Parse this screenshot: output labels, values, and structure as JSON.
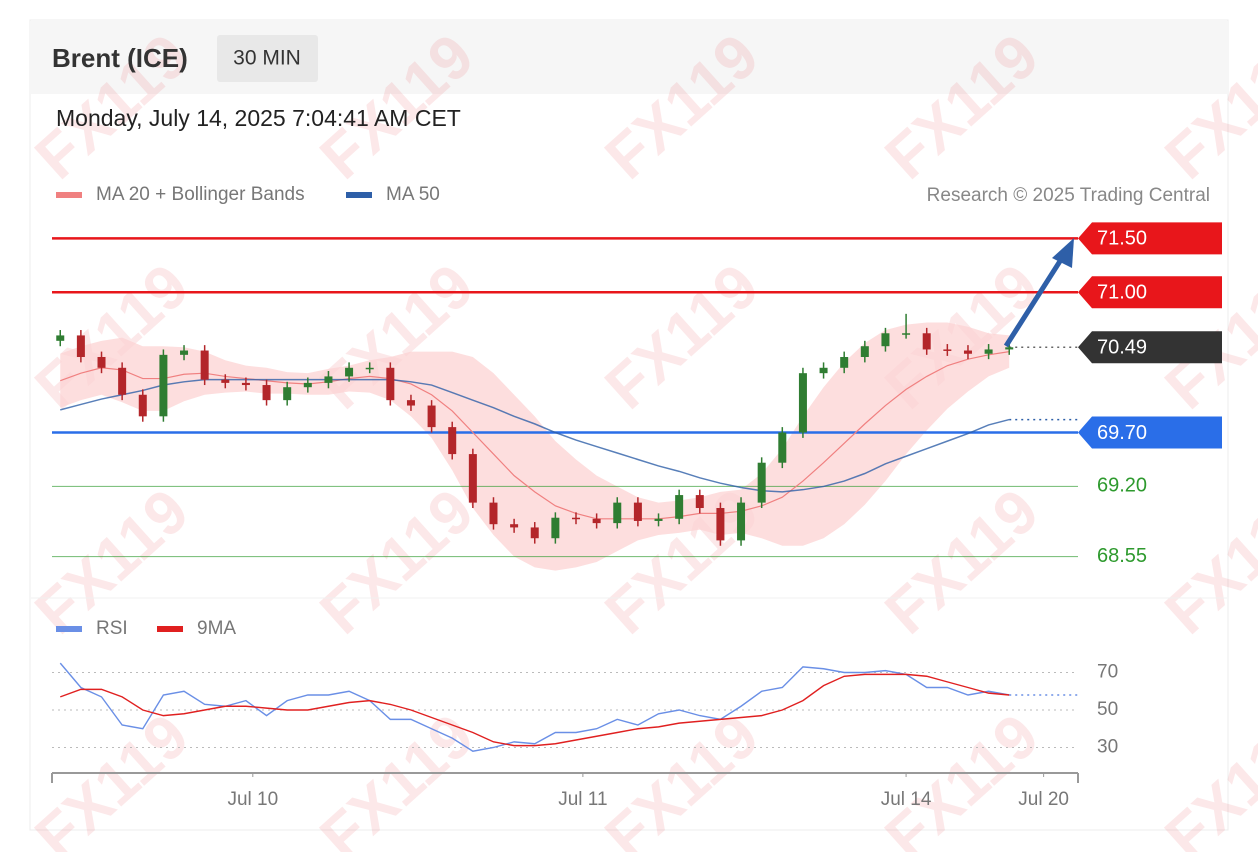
{
  "header": {
    "title": "Brent (ICE)",
    "interval": "30 MIN",
    "timestamp": "Monday, July 14, 2025 7:04:41 AM CET",
    "credit": "Research © 2025 Trading Central"
  },
  "watermark": "FX119",
  "chart_data": [
    {
      "type": "candlestick",
      "x": [
        -28,
        -25,
        -22,
        -19,
        -16,
        -13,
        -10,
        -7,
        -4,
        -1,
        2,
        5,
        8,
        11,
        14,
        17,
        20,
        23,
        26,
        29,
        32,
        35,
        38,
        41,
        44,
        47,
        50,
        53,
        56,
        59,
        62,
        65,
        68,
        71,
        74,
        77,
        80,
        83,
        86,
        89,
        92,
        95,
        98,
        101,
        104,
        107,
        110
      ],
      "open": [
        70.55,
        70.6,
        70.4,
        70.3,
        70.05,
        69.85,
        70.42,
        70.46,
        70.19,
        70.16,
        70.14,
        70.0,
        70.12,
        70.16,
        70.22,
        70.3,
        70.3,
        70.0,
        69.95,
        69.75,
        69.5,
        69.05,
        68.85,
        68.82,
        68.72,
        68.91,
        68.9,
        68.86,
        69.05,
        68.88,
        68.9,
        69.12,
        69.0,
        68.7,
        69.05,
        69.42,
        69.7,
        70.25,
        70.3,
        70.4,
        70.5,
        70.62,
        70.62,
        70.47,
        70.46,
        70.43,
        70.47
      ],
      "high": [
        70.65,
        70.65,
        70.45,
        70.35,
        70.1,
        70.47,
        70.51,
        70.51,
        70.24,
        70.21,
        70.19,
        70.17,
        70.21,
        70.27,
        70.35,
        70.35,
        70.35,
        70.05,
        70.0,
        69.8,
        69.55,
        69.1,
        68.9,
        68.87,
        68.96,
        68.96,
        68.95,
        69.1,
        69.1,
        68.95,
        69.17,
        69.17,
        69.05,
        69.1,
        69.47,
        69.75,
        70.3,
        70.35,
        70.45,
        70.55,
        70.67,
        70.8,
        70.67,
        70.52,
        70.51,
        70.52,
        70.54
      ],
      "low": [
        70.5,
        70.35,
        70.25,
        70.0,
        69.8,
        69.8,
        70.37,
        70.14,
        70.11,
        70.09,
        69.95,
        69.95,
        70.07,
        70.11,
        70.17,
        70.25,
        69.95,
        69.9,
        69.7,
        69.45,
        69.0,
        68.8,
        68.77,
        68.67,
        68.67,
        68.85,
        68.81,
        68.81,
        68.83,
        68.83,
        68.85,
        68.95,
        68.65,
        68.65,
        69.0,
        69.37,
        69.65,
        70.2,
        70.25,
        70.35,
        70.45,
        70.57,
        70.42,
        70.41,
        70.38,
        70.38,
        70.42
      ],
      "close": [
        70.6,
        70.4,
        70.3,
        70.05,
        69.85,
        70.42,
        70.46,
        70.19,
        70.16,
        70.14,
        70.0,
        70.12,
        70.16,
        70.22,
        70.3,
        70.3,
        70.0,
        69.95,
        69.75,
        69.5,
        69.05,
        68.85,
        68.82,
        68.72,
        68.91,
        68.9,
        68.86,
        69.05,
        68.88,
        68.9,
        69.12,
        69.0,
        68.7,
        69.05,
        69.42,
        69.7,
        70.25,
        70.3,
        70.4,
        70.5,
        70.62,
        70.62,
        70.47,
        70.46,
        70.43,
        70.47,
        70.49
      ],
      "up_color": "#2f7d32",
      "down_color": "#b3262a",
      "series": [
        {
          "name": "MA 20 + Bollinger Bands",
          "color": "#f08080",
          "values": [
            70.18,
            70.25,
            70.3,
            70.28,
            70.2,
            70.2,
            70.24,
            70.25,
            70.22,
            70.2,
            70.18,
            70.16,
            70.15,
            70.17,
            70.2,
            70.22,
            70.2,
            70.15,
            70.05,
            69.9,
            69.7,
            69.5,
            69.3,
            69.15,
            69.02,
            68.95,
            68.9,
            68.9,
            68.9,
            68.9,
            68.92,
            68.95,
            68.95,
            68.97,
            69.02,
            69.1,
            69.25,
            69.42,
            69.6,
            69.78,
            69.95,
            70.1,
            70.22,
            70.32,
            70.38,
            70.42,
            70.45
          ]
        },
        {
          "name": "MA 50",
          "color": "#2e5fa8",
          "values": [
            69.91,
            69.96,
            70.01,
            70.05,
            70.09,
            70.14,
            70.17,
            70.19,
            70.19,
            70.19,
            70.19,
            70.19,
            70.19,
            70.19,
            70.19,
            70.19,
            70.19,
            70.17,
            70.14,
            70.07,
            70.0,
            69.93,
            69.85,
            69.78,
            69.7,
            69.63,
            69.57,
            69.51,
            69.45,
            69.39,
            69.34,
            69.28,
            69.23,
            69.19,
            69.16,
            69.15,
            69.17,
            69.2,
            69.25,
            69.32,
            69.41,
            69.48,
            69.55,
            69.62,
            69.69,
            69.77,
            69.82
          ]
        }
      ],
      "bands": {
        "color": "#fcd3d3",
        "upper": [
          70.43,
          70.5,
          70.55,
          70.58,
          70.5,
          70.5,
          70.49,
          70.45,
          70.37,
          70.32,
          70.3,
          70.26,
          70.25,
          70.29,
          70.32,
          70.37,
          70.4,
          70.45,
          70.45,
          70.45,
          70.4,
          70.25,
          70.05,
          69.85,
          69.62,
          69.45,
          69.3,
          69.2,
          69.1,
          69.05,
          69.07,
          69.1,
          69.15,
          69.17,
          69.32,
          69.55,
          69.85,
          70.12,
          70.35,
          70.53,
          70.65,
          70.7,
          70.72,
          70.72,
          70.68,
          70.62,
          70.6
        ],
        "lower": [
          69.93,
          70.0,
          70.05,
          69.98,
          69.9,
          69.9,
          69.99,
          70.05,
          70.07,
          70.08,
          70.06,
          70.06,
          70.05,
          70.05,
          70.08,
          70.07,
          70.0,
          69.85,
          69.65,
          69.35,
          69.0,
          68.75,
          68.55,
          68.45,
          68.42,
          68.45,
          68.5,
          68.6,
          68.7,
          68.75,
          68.77,
          68.8,
          68.75,
          68.77,
          68.72,
          68.65,
          68.65,
          68.72,
          68.85,
          69.03,
          69.25,
          69.5,
          69.72,
          69.92,
          70.08,
          70.22,
          70.3
        ]
      },
      "levels": [
        {
          "value": 71.5,
          "label": "71.50",
          "color": "#e8161b",
          "flag": true
        },
        {
          "value": 71.0,
          "label": "71.00",
          "color": "#e8161b",
          "flag": true
        },
        {
          "value": 70.49,
          "color": "#333333",
          "flag": true,
          "linestyle": "dotted"
        },
        {
          "value": 69.7,
          "label": "69.70",
          "color": "#2a6ee8",
          "flag": true
        },
        {
          "value": 69.2,
          "label": "69.20",
          "color": "#2e9a2e",
          "flag": false
        },
        {
          "value": 68.55,
          "color": "#2e9a2e",
          "flag": false
        }
      ],
      "xlim": [
        -29.2,
        120
      ],
      "ylim": [
        68.24,
        71.67
      ]
    },
    {
      "type": "line",
      "x": [
        -28,
        -25,
        -22,
        -19,
        -16,
        -13,
        -10,
        -7,
        -4,
        -1,
        2,
        5,
        8,
        11,
        14,
        17,
        20,
        23,
        26,
        29,
        32,
        35,
        38,
        41,
        44,
        47,
        50,
        53,
        56,
        59,
        62,
        65,
        68,
        71,
        74,
        77,
        80,
        83,
        86,
        89,
        92,
        95,
        98,
        101,
        104,
        107,
        110
      ],
      "series": [
        {
          "name": "RSI",
          "color": "#6a8fe6",
          "values": [
            75,
            62,
            57,
            42,
            40,
            58,
            60,
            53,
            52,
            55,
            47,
            55,
            58,
            58,
            60,
            55,
            45,
            45,
            40,
            35,
            28,
            30,
            33,
            32,
            38,
            38,
            40,
            45,
            42,
            48,
            50,
            47,
            45,
            52,
            60,
            62,
            73,
            72,
            70,
            70,
            71,
            69,
            62,
            62,
            58,
            60,
            58
          ]
        },
        {
          "name": "9MA",
          "color": "#e02020",
          "values": [
            57,
            61,
            61,
            57,
            50,
            47,
            48,
            50,
            52,
            52,
            51,
            50,
            50,
            52,
            54,
            55,
            53,
            50,
            46,
            42,
            38,
            33,
            31,
            31,
            32,
            34,
            36,
            38,
            40,
            41,
            43,
            44,
            45,
            46,
            47,
            50,
            55,
            63,
            68,
            69,
            69,
            69,
            68,
            65,
            62,
            59,
            58
          ]
        }
      ],
      "xlim": [
        -29.2,
        120
      ],
      "ylim": [
        18,
        82
      ],
      "yticks": [
        70,
        50,
        30
      ],
      "xticks": [
        {
          "value": 0,
          "label": "Jul 10"
        },
        {
          "value": 48,
          "label": "Jul 11"
        },
        {
          "value": 95,
          "label": "Jul 14"
        },
        {
          "value": 115,
          "label": "Jul 20"
        }
      ]
    }
  ]
}
